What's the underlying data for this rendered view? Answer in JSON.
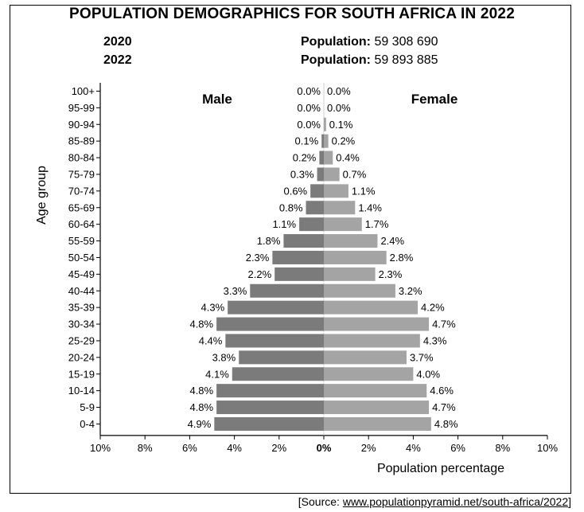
{
  "header": {
    "title": "POPULATION DEMOGRAPHICS FOR SOUTH AFRICA IN 2022",
    "rows": [
      {
        "year": "2020",
        "label": "Population:",
        "value": "59 308 690"
      },
      {
        "year": "2022",
        "label": "Population:",
        "value": "59 893 885"
      }
    ]
  },
  "source": {
    "prefix": "[Source:",
    "url": "www.populationpyramid.net/south-africa/2022",
    "suffix": "]"
  },
  "chart_data": {
    "type": "bar",
    "orientation": "horizontal-pyramid",
    "ylabel": "Age group",
    "xlabel": "Population percentage",
    "xlim": [
      -10,
      10
    ],
    "x_ticks": [
      "10%",
      "8%",
      "6%",
      "4%",
      "2%",
      "0%",
      "2%",
      "4%",
      "6%",
      "8%",
      "10%"
    ],
    "categories": [
      "100+",
      "95-99",
      "90-94",
      "85-89",
      "80-84",
      "75-79",
      "70-74",
      "65-69",
      "60-64",
      "55-59",
      "50-54",
      "45-49",
      "40-44",
      "35-39",
      "30-34",
      "25-29",
      "20-24",
      "15-19",
      "10-14",
      "5-9",
      "0-4"
    ],
    "series": [
      {
        "name": "Male",
        "color": "#7b7b7b",
        "values": [
          0.0,
          0.0,
          0.0,
          0.1,
          0.2,
          0.3,
          0.6,
          0.8,
          1.1,
          1.8,
          2.3,
          2.2,
          3.3,
          4.3,
          4.8,
          4.4,
          3.8,
          4.1,
          4.8,
          4.8,
          4.9
        ],
        "labels": [
          "0.0%",
          "0.0%",
          "0.0%",
          "0.1%",
          "0.2%",
          "0.3%",
          "0.6%",
          "0.8%",
          "1.1%",
          "1.8%",
          "2.3%",
          "2.2%",
          "3.3%",
          "4.3%",
          "4.8%",
          "4.4%",
          "3.8%",
          "4.1%",
          "4.8%",
          "4.8%",
          "4.9%"
        ]
      },
      {
        "name": "Female",
        "color": "#a4a4a4",
        "values": [
          0.0,
          0.0,
          0.1,
          0.2,
          0.4,
          0.7,
          1.1,
          1.4,
          1.7,
          2.4,
          2.8,
          2.3,
          3.2,
          4.2,
          4.7,
          4.3,
          3.7,
          4.0,
          4.6,
          4.7,
          4.8
        ],
        "labels": [
          "0.0%",
          "0.0%",
          "0.1%",
          "0.2%",
          "0.4%",
          "0.7%",
          "1.1%",
          "1.4%",
          "1.7%",
          "2.4%",
          "2.8%",
          "2.3%",
          "3.2%",
          "4.2%",
          "4.7%",
          "4.3%",
          "3.7%",
          "4.0%",
          "4.6%",
          "4.7%",
          "4.8%"
        ]
      }
    ]
  }
}
